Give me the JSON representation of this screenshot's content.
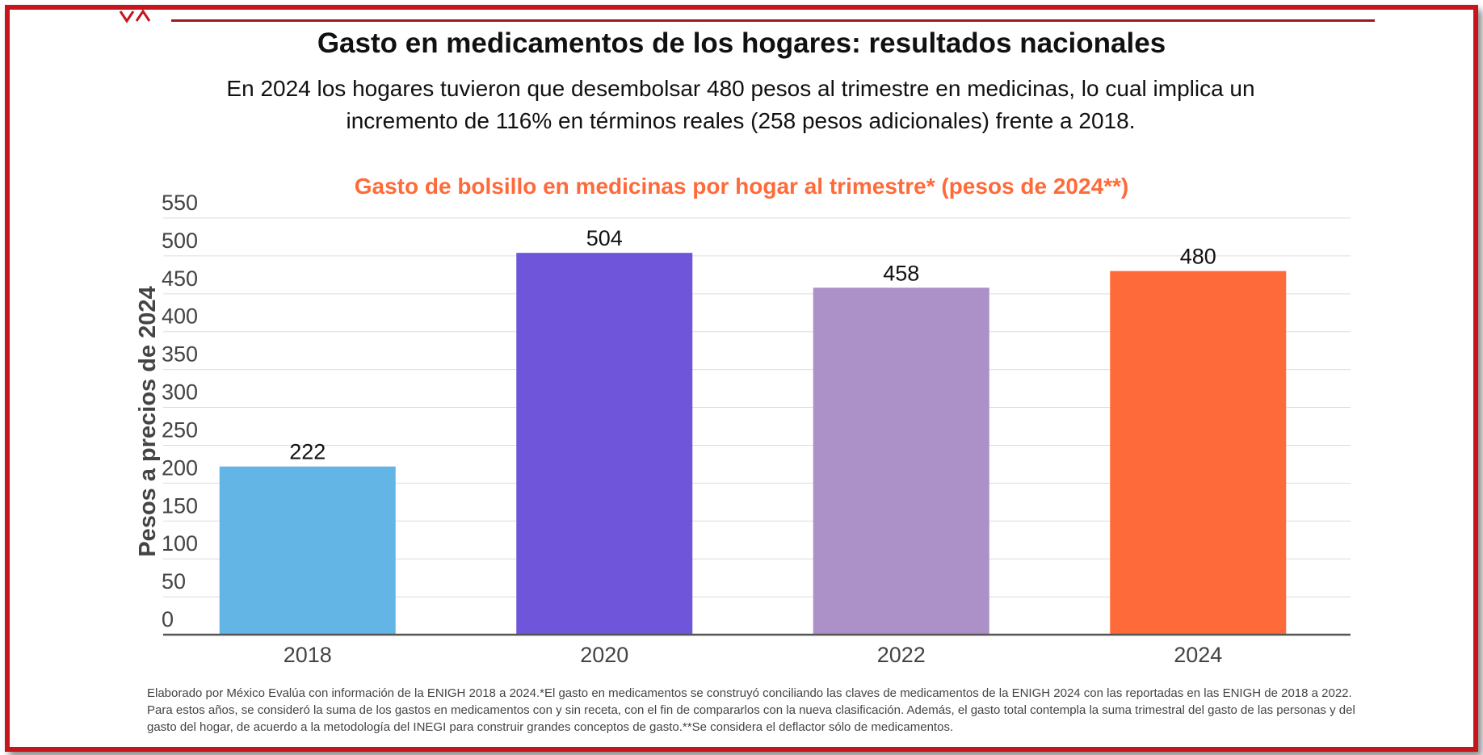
{
  "header": {
    "title": "Gasto en medicamentos de los hogares: resultados nacionales",
    "subtitle": "En 2024 los hogares tuvieron que desembolsar 480 pesos al trimestre en medicinas, lo cual implica un incremento de 116% en términos reales (258 pesos adicionales) frente a 2018."
  },
  "footnote": "Elaborado por México Evalúa con información de la ENIGH 2018 a 2024.*El gasto en medicamentos se construyó conciliando las claves de medicamentos de la ENIGH 2024 con las reportadas en las ENIGH de 2018 a 2022. Para estos años, se consideró la suma de los gastos en medicamentos con y sin receta, con el fin de compararlos con la nueva clasificación. Además, el gasto total contempla la suma trimestral del gasto de las personas y del gasto del hogar, de acuerdo a la metodología del INEGI para construir grandes conceptos de gasto.**Se considera el deflactor sólo de medicamentos.",
  "colors": {
    "border": "#c4161c",
    "chart_title": "#ff6a3a",
    "grid": "#dddddd",
    "axis": "#555555"
  },
  "chart_data": {
    "type": "bar",
    "title": "Gasto de bolsillo en medicinas por hogar al trimestre* (pesos de 2024**)",
    "xlabel": "",
    "ylabel": "Pesos a precios de 2024",
    "categories": [
      "2018",
      "2020",
      "2022",
      "2024"
    ],
    "values": [
      222,
      504,
      458,
      480
    ],
    "data_labels": [
      "222",
      "504",
      "458",
      "480"
    ],
    "bar_colors": [
      "#62b5e5",
      "#6e55d9",
      "#ab91c8",
      "#ff6a3a"
    ],
    "ylim": [
      0,
      550
    ],
    "yticks": [
      0,
      50,
      100,
      150,
      200,
      250,
      300,
      350,
      400,
      450,
      500,
      550
    ],
    "ytick_labels": [
      "0",
      "50",
      "100",
      "150",
      "200",
      "250",
      "300",
      "350",
      "400",
      "450",
      "500",
      "550"
    ],
    "grid": true,
    "legend": "none"
  }
}
